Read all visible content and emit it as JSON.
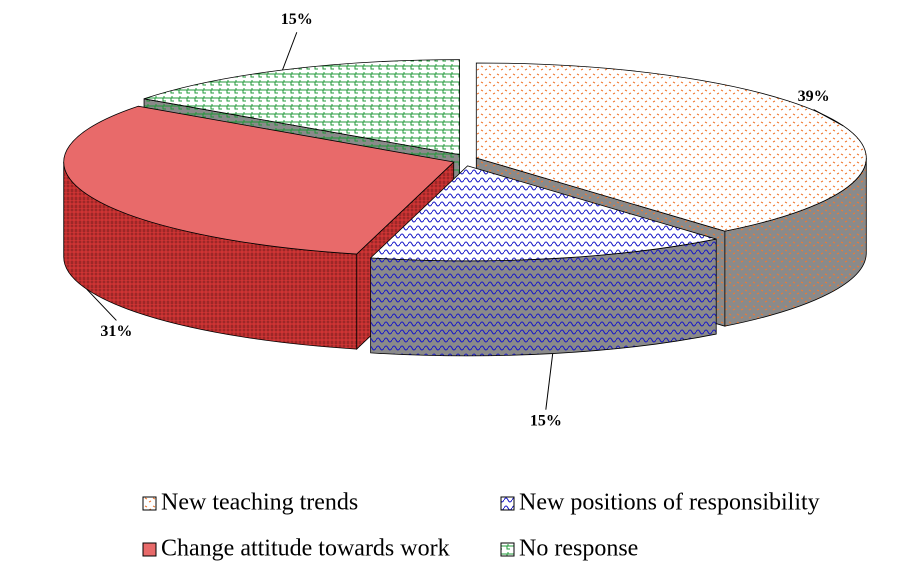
{
  "chart_data": {
    "type": "pie3d",
    "categories": [
      "New teaching trends",
      "New positions of responsibility",
      "Change attitude towards work",
      "No response"
    ],
    "values": [
      39,
      15,
      31,
      15
    ],
    "value_labels": [
      "39%",
      "15%",
      "31%",
      "15%"
    ],
    "colors": [
      "#f07830",
      "#1818c8",
      "#e03838",
      "#209838"
    ],
    "legend": "bottom"
  }
}
